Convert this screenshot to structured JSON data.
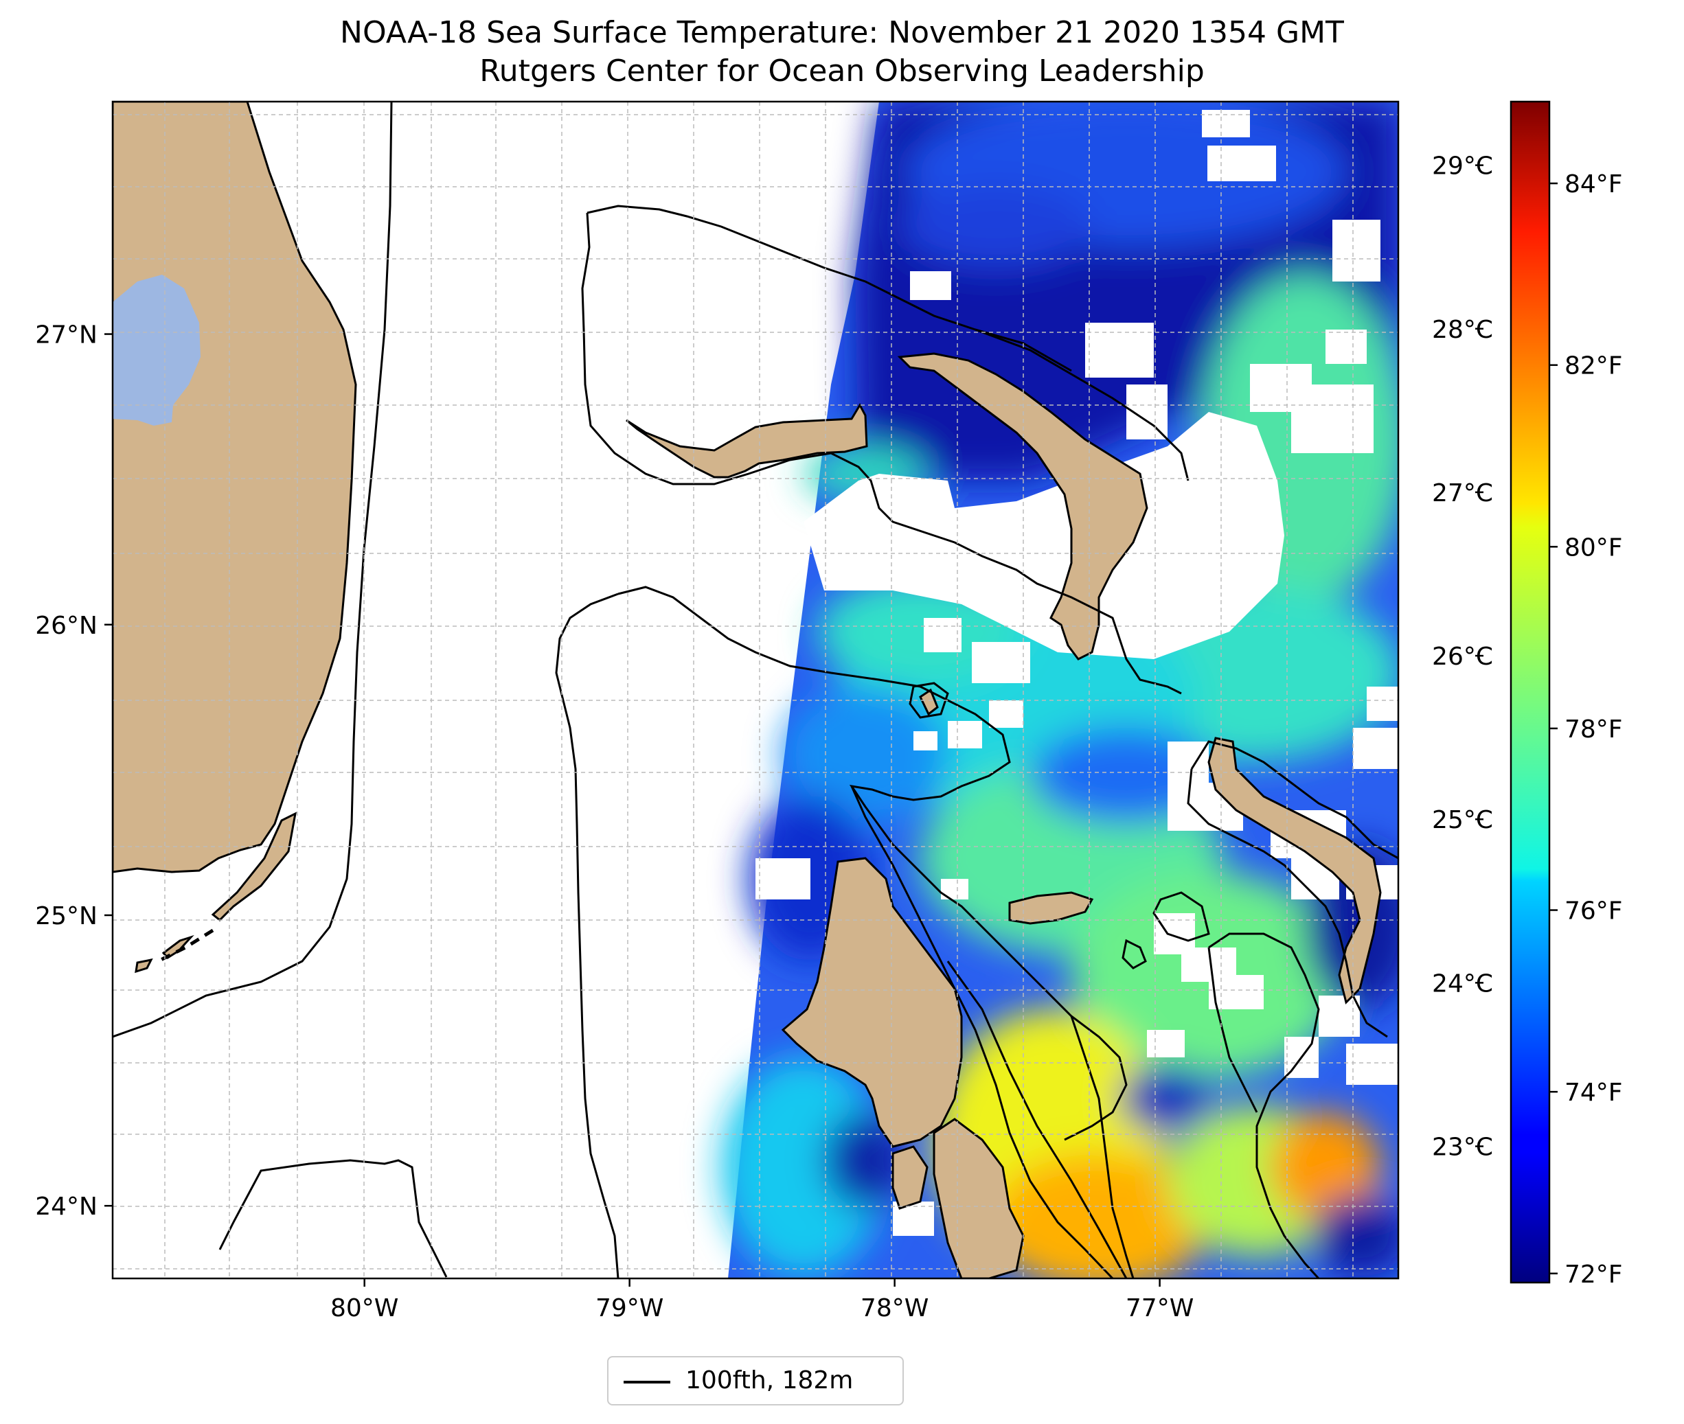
{
  "title": {
    "line1": "NOAA-18 Sea Surface Temperature: November 21 2020 1354 GMT",
    "line2": "Rutgers Center for Ocean Observing Leadership"
  },
  "map": {
    "longitude_range": [
      -80.95,
      -76.1
    ],
    "latitude_range": [
      23.75,
      27.8
    ],
    "longitude_ticks": [
      {
        "value": -80,
        "label": "80°W"
      },
      {
        "value": -79,
        "label": "79°W"
      },
      {
        "value": -78,
        "label": "78°W"
      },
      {
        "value": -77,
        "label": "77°W"
      }
    ],
    "latitude_ticks": [
      {
        "value": 27,
        "label": "27°N"
      },
      {
        "value": 26,
        "label": "26°N"
      },
      {
        "value": 25,
        "label": "25°N"
      },
      {
        "value": 24,
        "label": "24°N"
      }
    ],
    "gridlines": true,
    "colors": {
      "land": "#d2b48c",
      "lake": "#9db7e2",
      "no_data": "#ffffff",
      "contour": "#000000"
    }
  },
  "colorbar": {
    "colormap": "jet",
    "range_f": [
      71.9,
      84.9
    ],
    "celsius_ticks": [
      {
        "value": 23,
        "label": "23°C"
      },
      {
        "value": 24,
        "label": "24°C"
      },
      {
        "value": 25,
        "label": "25°C"
      },
      {
        "value": 26,
        "label": "26°C"
      },
      {
        "value": 27,
        "label": "27°C"
      },
      {
        "value": 28,
        "label": "28°C"
      },
      {
        "value": 29,
        "label": "29°C"
      }
    ],
    "fahrenheit_ticks": [
      {
        "value": 72,
        "label": "72°F"
      },
      {
        "value": 74,
        "label": "74°F"
      },
      {
        "value": 76,
        "label": "76°F"
      },
      {
        "value": 78,
        "label": "78°F"
      },
      {
        "value": 80,
        "label": "80°F"
      },
      {
        "value": 82,
        "label": "82°F"
      },
      {
        "value": 84,
        "label": "84°F"
      }
    ]
  },
  "legend": {
    "label": "100fth, 182m",
    "placement": "bottom-center"
  }
}
